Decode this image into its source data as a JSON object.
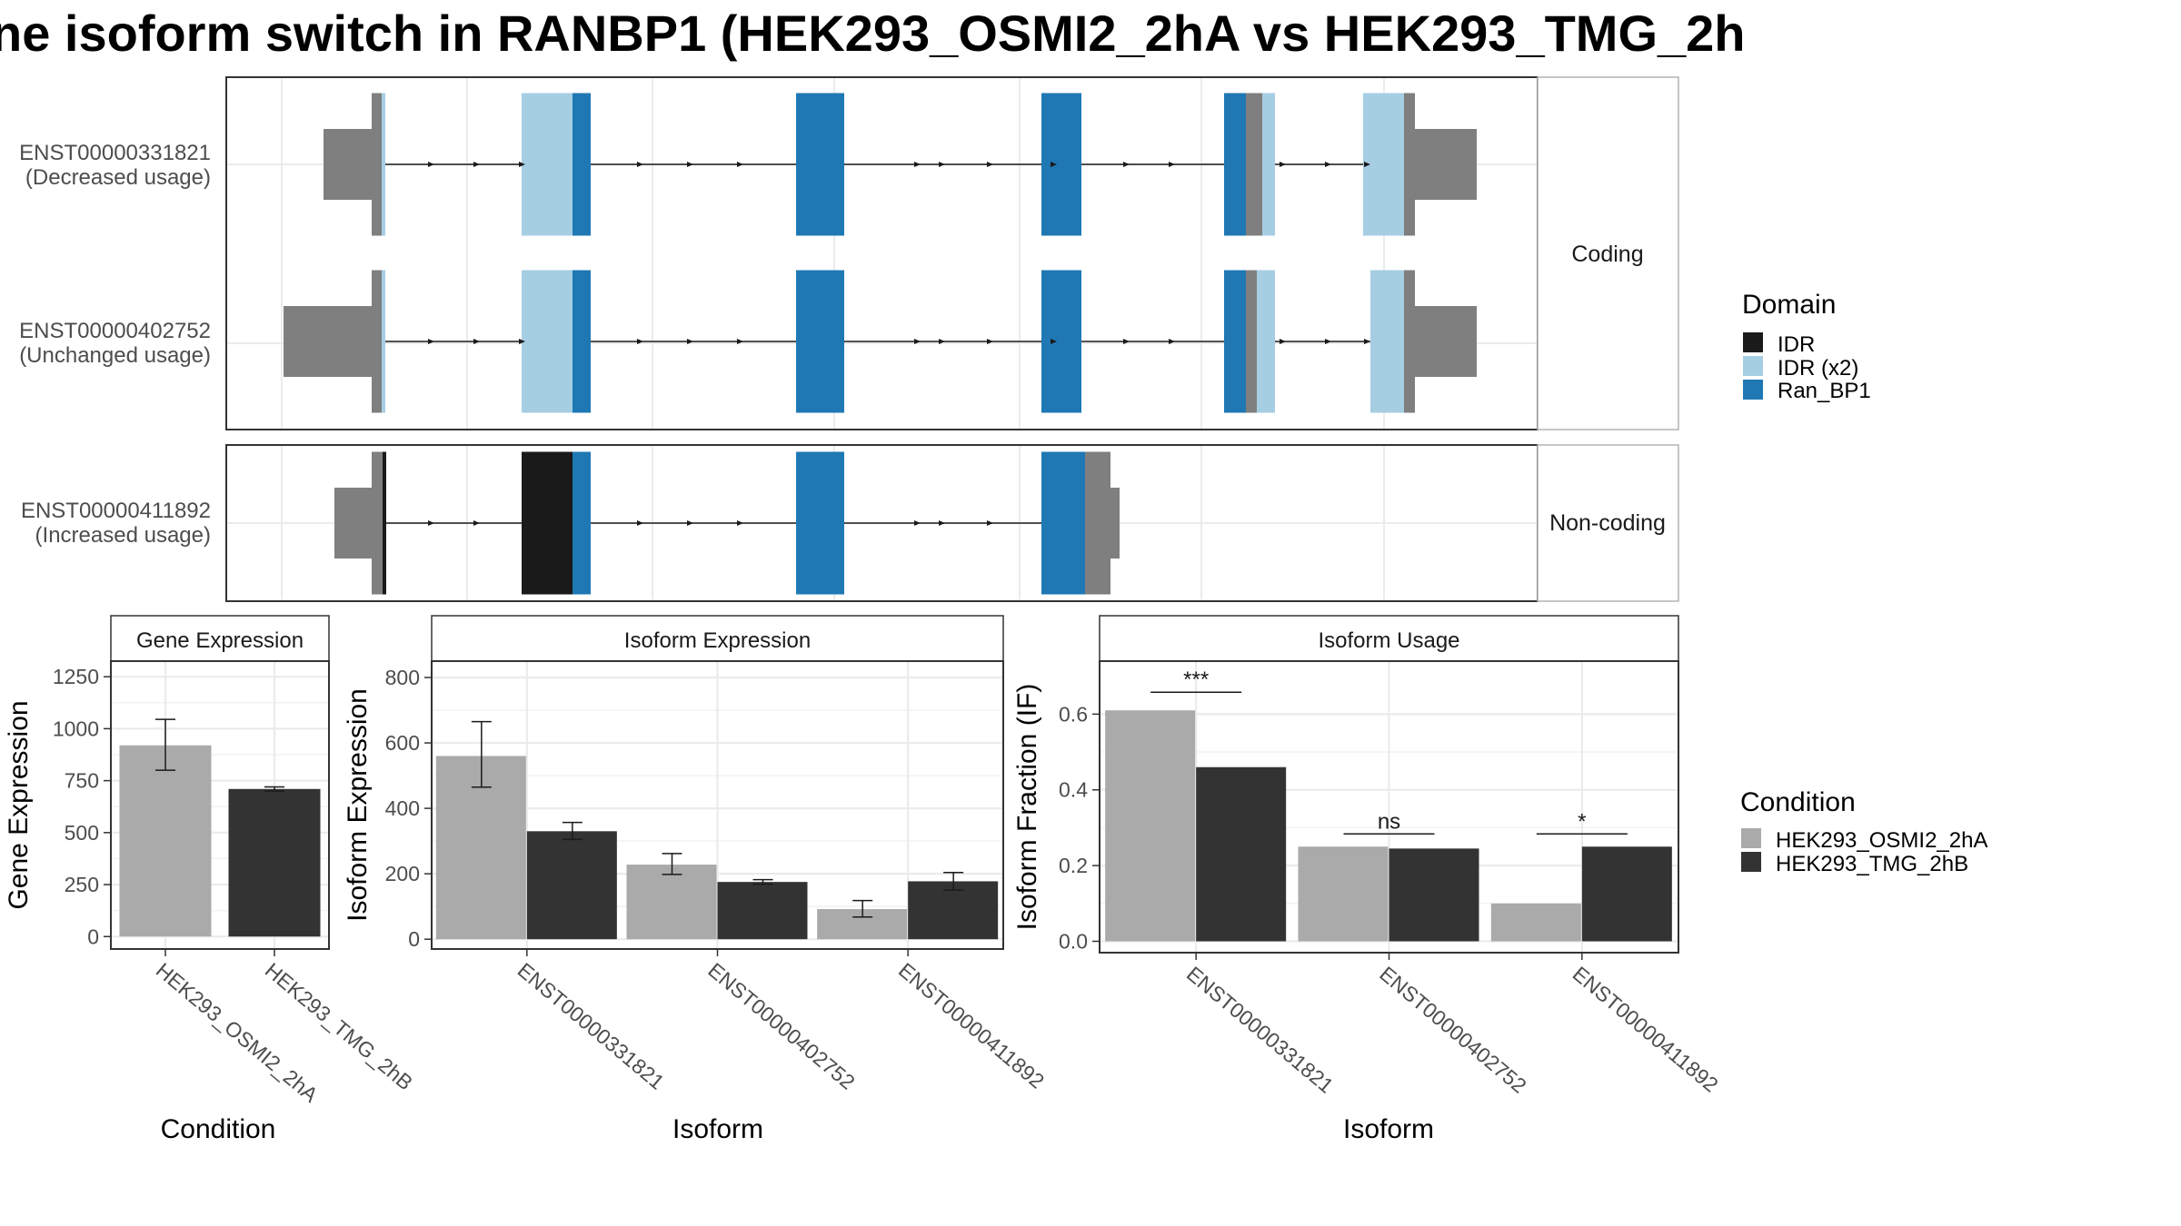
{
  "title": "ne isoform switch in RANBP1 (HEK293_OSMI2_2hA vs HEK293_TMG_2h",
  "colors": {
    "IDR": "#1a1a1a",
    "IDR (x2)": "#a6cee3",
    "Ran_BP1": "#1f78b4",
    "utr": "#7f7f7f",
    "cond_a": "#aaaaaa",
    "cond_b": "#333333"
  },
  "structure": {
    "facets": {
      "coding": "Coding",
      "noncoding": "Non-coding"
    },
    "isoforms": [
      {
        "id": "ENST00000331821",
        "note": "(Decreased usage)",
        "facet": "coding"
      },
      {
        "id": "ENST00000402752",
        "note": "(Unchanged usage)",
        "facet": "coding"
      },
      {
        "id": "ENST00000411892",
        "note": "(Increased usage)",
        "facet": "noncoding"
      }
    ],
    "legend_title": "Domain",
    "legend": [
      {
        "label": "IDR",
        "color": "#1a1a1a"
      },
      {
        "label": "IDR (x2)",
        "color": "#a6cee3"
      },
      {
        "label": "Ran_BP1",
        "color": "#1f78b4"
      }
    ]
  },
  "chart_data": [
    {
      "type": "bar",
      "title": "Gene Expression",
      "xlabel": "Condition",
      "ylabel": "Gene Expression",
      "categories": [
        "HEK293_OSMI2_2hA",
        "HEK293_TMG_2hB"
      ],
      "values": [
        920,
        710
      ],
      "errors": [
        [
          800,
          1045
        ],
        [
          700,
          720
        ]
      ],
      "ylim": [
        -60,
        1325
      ],
      "yticks": [
        0,
        250,
        500,
        750,
        1000,
        1250
      ]
    },
    {
      "type": "bar",
      "title": "Isoform Expression",
      "xlabel": "Isoform",
      "ylabel": "Isoform Expression",
      "categories": [
        "ENST00000331821",
        "ENST00000402752",
        "ENST00000411892"
      ],
      "series": [
        {
          "name": "HEK293_OSMI2_2hA",
          "values": [
            560,
            228,
            92
          ],
          "errors": [
            [
              465,
              665
            ],
            [
              198,
              262
            ],
            [
              68,
              118
            ]
          ]
        },
        {
          "name": "HEK293_TMG_2hB",
          "values": [
            330,
            175,
            177
          ],
          "errors": [
            [
              305,
              357
            ],
            [
              168,
              182
            ],
            [
              150,
              204
            ]
          ]
        }
      ],
      "ylim": [
        -30,
        850
      ],
      "yticks": [
        0,
        200,
        400,
        600,
        800
      ]
    },
    {
      "type": "bar",
      "title": "Isoform Usage",
      "xlabel": "Isoform",
      "ylabel": "Isoform Fraction (IF)",
      "categories": [
        "ENST00000331821",
        "ENST00000402752",
        "ENST00000411892"
      ],
      "series": [
        {
          "name": "HEK293_OSMI2_2hA",
          "values": [
            0.61,
            0.25,
            0.1
          ]
        },
        {
          "name": "HEK293_TMG_2hB",
          "values": [
            0.46,
            0.245,
            0.25
          ]
        }
      ],
      "significance": [
        "***",
        "ns",
        "*"
      ],
      "ylim": [
        -0.03,
        0.74
      ],
      "yticks": [
        0.0,
        0.2,
        0.4,
        0.6
      ]
    }
  ],
  "condition_legend": {
    "title": "Condition",
    "items": [
      {
        "label": "HEK293_OSMI2_2hA",
        "color": "#aaaaaa"
      },
      {
        "label": "HEK293_TMG_2hB",
        "color": "#333333"
      }
    ]
  }
}
